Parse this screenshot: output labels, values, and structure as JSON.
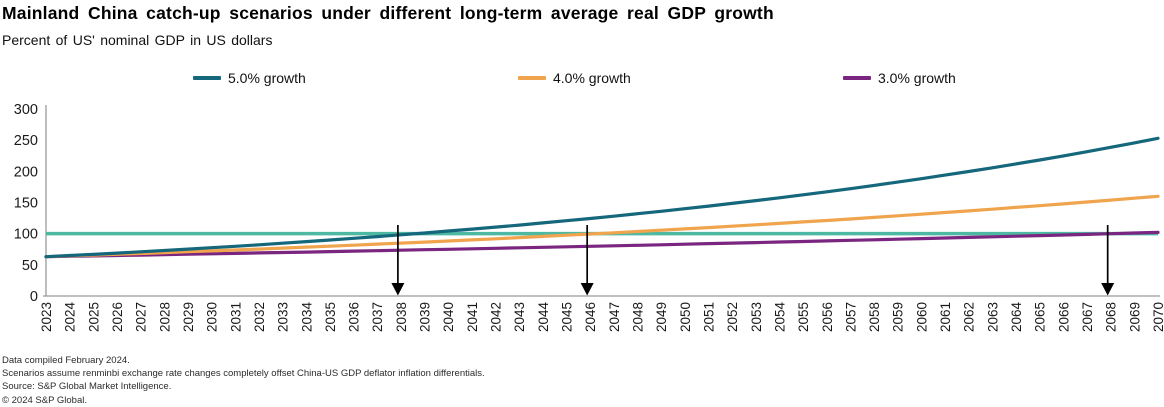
{
  "header": {
    "title": "Mainland China catch-up scenarios under different long-term average real GDP growth",
    "subtitle": "Percent of US' nominal GDP in US dollars"
  },
  "legend": {
    "position": "top",
    "items": [
      {
        "label": "5.0% growth",
        "color": "#15677b"
      },
      {
        "label": "4.0% growth",
        "color": "#f0a44e"
      },
      {
        "label": "3.0% growth",
        "color": "#7a2580"
      }
    ]
  },
  "chart_data": {
    "type": "line",
    "title": "Mainland China catch-up scenarios under different long-term average real GDP growth",
    "subtitle": "Percent of US' nominal GDP in US dollars",
    "xlabel": "",
    "ylabel": "",
    "grid": false,
    "ylim": [
      0,
      300
    ],
    "yticks": [
      0,
      50,
      100,
      150,
      200,
      250,
      300
    ],
    "axis_color": "#9a9a9a",
    "tick_label_color": "#1a1a1a",
    "x": [
      2023,
      2024,
      2025,
      2026,
      2027,
      2028,
      2029,
      2030,
      2031,
      2032,
      2033,
      2034,
      2035,
      2036,
      2037,
      2038,
      2039,
      2040,
      2041,
      2042,
      2043,
      2044,
      2045,
      2046,
      2047,
      2048,
      2049,
      2050,
      2051,
      2052,
      2053,
      2054,
      2055,
      2056,
      2057,
      2058,
      2059,
      2060,
      2061,
      2062,
      2063,
      2064,
      2065,
      2066,
      2067,
      2068,
      2069,
      2070
    ],
    "series": [
      {
        "name": "5.0% growth",
        "color": "#15677b",
        "values": [
          63.0,
          64.9,
          66.8,
          68.8,
          70.9,
          73.0,
          75.2,
          77.5,
          79.8,
          82.2,
          84.7,
          87.2,
          89.8,
          92.5,
          95.3,
          98.2,
          101.1,
          104.2,
          107.3,
          110.5,
          113.8,
          117.3,
          120.8,
          124.4,
          128.1,
          132.0,
          135.9,
          140.0,
          144.2,
          148.6,
          153.0,
          157.6,
          162.3,
          167.2,
          172.2,
          177.4,
          182.7,
          188.2,
          193.9,
          199.7,
          205.7,
          211.9,
          218.2,
          224.8,
          231.5,
          238.5,
          245.6,
          253.0
        ]
      },
      {
        "name": "4.0% growth",
        "color": "#f0a44e",
        "values": [
          63.0,
          64.3,
          65.6,
          66.9,
          68.2,
          69.6,
          71.0,
          72.4,
          73.8,
          75.3,
          76.8,
          78.4,
          79.9,
          81.5,
          83.2,
          84.8,
          86.5,
          88.3,
          90.0,
          91.8,
          93.7,
          95.6,
          97.5,
          99.4,
          101.4,
          103.4,
          105.5,
          107.6,
          109.8,
          112.0,
          114.2,
          116.5,
          118.8,
          121.2,
          123.6,
          126.1,
          128.7,
          131.2,
          133.9,
          136.5,
          139.3,
          142.1,
          144.9,
          147.8,
          150.8,
          153.8,
          156.9,
          160.0
        ]
      },
      {
        "name": "3.0% growth",
        "color": "#7a2580",
        "values": [
          63.0,
          63.7,
          64.3,
          65.0,
          65.6,
          66.3,
          67.0,
          67.7,
          68.4,
          69.1,
          69.8,
          70.5,
          71.2,
          72.0,
          72.7,
          73.5,
          74.2,
          75.0,
          75.8,
          76.6,
          77.3,
          78.1,
          78.9,
          79.8,
          80.6,
          81.4,
          82.2,
          83.1,
          84.0,
          84.8,
          85.7,
          86.6,
          87.5,
          88.4,
          89.3,
          90.2,
          91.1,
          92.1,
          93.0,
          94.0,
          94.9,
          95.9,
          96.9,
          97.9,
          98.9,
          99.9,
          101.0,
          102.0
        ]
      }
    ],
    "reference_line": {
      "value": 100,
      "color": "#4eb9a2"
    },
    "annotations": [
      {
        "type": "arrow-down",
        "year": 2038,
        "meaning": "5.0% growth scenario reaches US parity"
      },
      {
        "type": "arrow-down",
        "year": 2046,
        "meaning": "4.0% growth scenario reaches US parity"
      },
      {
        "type": "arrow-down",
        "year": 2068,
        "meaning": "3.0% growth scenario reaches US parity"
      }
    ],
    "arrow_color": "#000000"
  },
  "footnotes": {
    "lines": [
      "Data compiled February 2024.",
      "Scenarios assume renminbi exchange rate changes completely offset China-US GDP deflator inflation differentials.",
      "Source: S&P Global Market Intelligence.",
      "© 2024 S&P Global."
    ]
  }
}
